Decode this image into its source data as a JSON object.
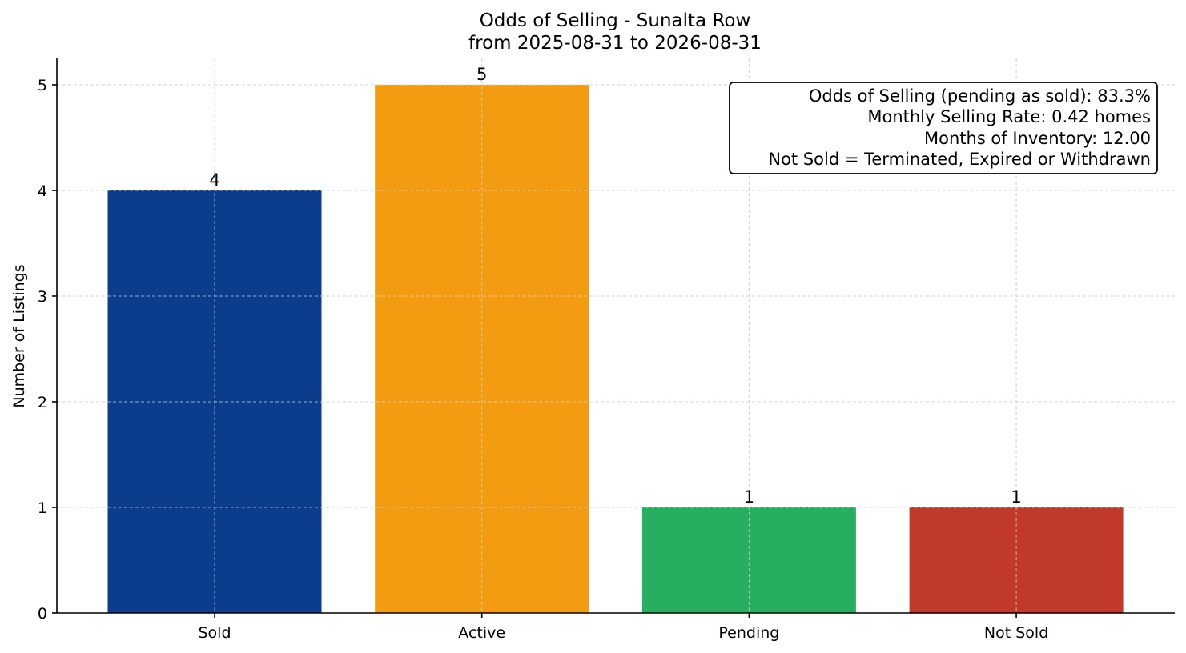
{
  "chart_data": {
    "type": "bar",
    "title": "Odds of Selling - Sunalta Row",
    "subtitle": "from 2025-08-31 to 2026-08-31",
    "xlabel": "",
    "ylabel": "Number of Listings",
    "categories": [
      "Sold",
      "Active",
      "Pending",
      "Not Sold"
    ],
    "values": [
      4,
      5,
      1,
      1
    ],
    "colors": [
      "#0b3d8c",
      "#f39c12",
      "#27ae60",
      "#c0392b"
    ],
    "ylim": [
      0,
      5.25
    ],
    "yticks": [
      0,
      1,
      2,
      3,
      4,
      5
    ],
    "grid": true,
    "info_box": {
      "position": "top-right",
      "lines": [
        "Odds of Selling (pending as sold): 83.3%",
        "Monthly Selling Rate: 0.42 homes",
        "Months of Inventory: 12.00",
        "Not Sold = Terminated, Expired or Withdrawn"
      ]
    }
  }
}
